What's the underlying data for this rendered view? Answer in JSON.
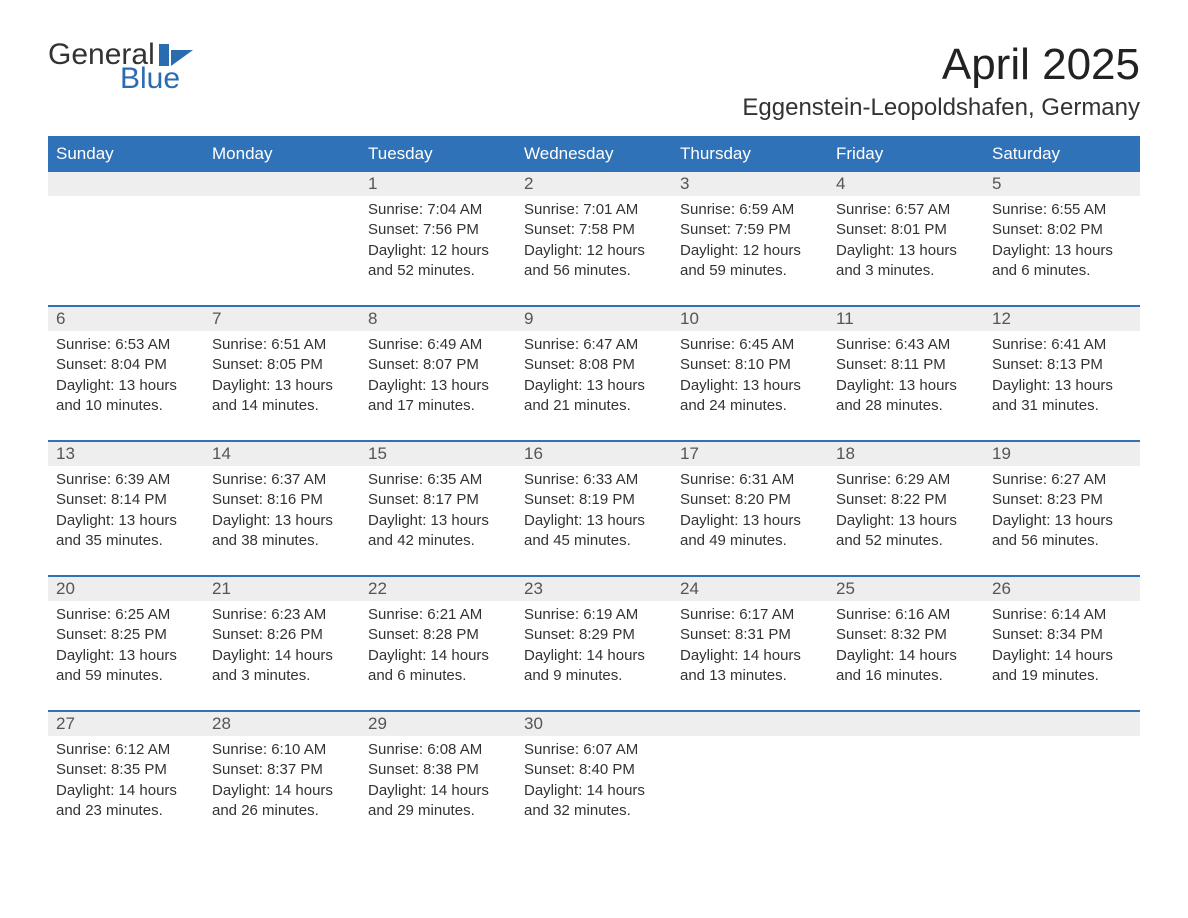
{
  "logo": {
    "word1": "General",
    "word2": "Blue"
  },
  "title": {
    "month": "April 2025",
    "location": "Eggenstein-Leopoldshafen, Germany"
  },
  "colors": {
    "header_bg": "#2f72b8",
    "header_text": "#ffffff",
    "daynum_bg": "#eeeeee",
    "rule": "#2f72b8",
    "body_text": "#333333",
    "logo_blue": "#2b6cb0",
    "page_bg": "#ffffff"
  },
  "weekdays": [
    "Sunday",
    "Monday",
    "Tuesday",
    "Wednesday",
    "Thursday",
    "Friday",
    "Saturday"
  ],
  "weeks": [
    [
      null,
      null,
      {
        "n": "1",
        "sr": "Sunrise: 7:04 AM",
        "ss": "Sunset: 7:56 PM",
        "d1": "Daylight: 12 hours",
        "d2": "and 52 minutes."
      },
      {
        "n": "2",
        "sr": "Sunrise: 7:01 AM",
        "ss": "Sunset: 7:58 PM",
        "d1": "Daylight: 12 hours",
        "d2": "and 56 minutes."
      },
      {
        "n": "3",
        "sr": "Sunrise: 6:59 AM",
        "ss": "Sunset: 7:59 PM",
        "d1": "Daylight: 12 hours",
        "d2": "and 59 minutes."
      },
      {
        "n": "4",
        "sr": "Sunrise: 6:57 AM",
        "ss": "Sunset: 8:01 PM",
        "d1": "Daylight: 13 hours",
        "d2": "and 3 minutes."
      },
      {
        "n": "5",
        "sr": "Sunrise: 6:55 AM",
        "ss": "Sunset: 8:02 PM",
        "d1": "Daylight: 13 hours",
        "d2": "and 6 minutes."
      }
    ],
    [
      {
        "n": "6",
        "sr": "Sunrise: 6:53 AM",
        "ss": "Sunset: 8:04 PM",
        "d1": "Daylight: 13 hours",
        "d2": "and 10 minutes."
      },
      {
        "n": "7",
        "sr": "Sunrise: 6:51 AM",
        "ss": "Sunset: 8:05 PM",
        "d1": "Daylight: 13 hours",
        "d2": "and 14 minutes."
      },
      {
        "n": "8",
        "sr": "Sunrise: 6:49 AM",
        "ss": "Sunset: 8:07 PM",
        "d1": "Daylight: 13 hours",
        "d2": "and 17 minutes."
      },
      {
        "n": "9",
        "sr": "Sunrise: 6:47 AM",
        "ss": "Sunset: 8:08 PM",
        "d1": "Daylight: 13 hours",
        "d2": "and 21 minutes."
      },
      {
        "n": "10",
        "sr": "Sunrise: 6:45 AM",
        "ss": "Sunset: 8:10 PM",
        "d1": "Daylight: 13 hours",
        "d2": "and 24 minutes."
      },
      {
        "n": "11",
        "sr": "Sunrise: 6:43 AM",
        "ss": "Sunset: 8:11 PM",
        "d1": "Daylight: 13 hours",
        "d2": "and 28 minutes."
      },
      {
        "n": "12",
        "sr": "Sunrise: 6:41 AM",
        "ss": "Sunset: 8:13 PM",
        "d1": "Daylight: 13 hours",
        "d2": "and 31 minutes."
      }
    ],
    [
      {
        "n": "13",
        "sr": "Sunrise: 6:39 AM",
        "ss": "Sunset: 8:14 PM",
        "d1": "Daylight: 13 hours",
        "d2": "and 35 minutes."
      },
      {
        "n": "14",
        "sr": "Sunrise: 6:37 AM",
        "ss": "Sunset: 8:16 PM",
        "d1": "Daylight: 13 hours",
        "d2": "and 38 minutes."
      },
      {
        "n": "15",
        "sr": "Sunrise: 6:35 AM",
        "ss": "Sunset: 8:17 PM",
        "d1": "Daylight: 13 hours",
        "d2": "and 42 minutes."
      },
      {
        "n": "16",
        "sr": "Sunrise: 6:33 AM",
        "ss": "Sunset: 8:19 PM",
        "d1": "Daylight: 13 hours",
        "d2": "and 45 minutes."
      },
      {
        "n": "17",
        "sr": "Sunrise: 6:31 AM",
        "ss": "Sunset: 8:20 PM",
        "d1": "Daylight: 13 hours",
        "d2": "and 49 minutes."
      },
      {
        "n": "18",
        "sr": "Sunrise: 6:29 AM",
        "ss": "Sunset: 8:22 PM",
        "d1": "Daylight: 13 hours",
        "d2": "and 52 minutes."
      },
      {
        "n": "19",
        "sr": "Sunrise: 6:27 AM",
        "ss": "Sunset: 8:23 PM",
        "d1": "Daylight: 13 hours",
        "d2": "and 56 minutes."
      }
    ],
    [
      {
        "n": "20",
        "sr": "Sunrise: 6:25 AM",
        "ss": "Sunset: 8:25 PM",
        "d1": "Daylight: 13 hours",
        "d2": "and 59 minutes."
      },
      {
        "n": "21",
        "sr": "Sunrise: 6:23 AM",
        "ss": "Sunset: 8:26 PM",
        "d1": "Daylight: 14 hours",
        "d2": "and 3 minutes."
      },
      {
        "n": "22",
        "sr": "Sunrise: 6:21 AM",
        "ss": "Sunset: 8:28 PM",
        "d1": "Daylight: 14 hours",
        "d2": "and 6 minutes."
      },
      {
        "n": "23",
        "sr": "Sunrise: 6:19 AM",
        "ss": "Sunset: 8:29 PM",
        "d1": "Daylight: 14 hours",
        "d2": "and 9 minutes."
      },
      {
        "n": "24",
        "sr": "Sunrise: 6:17 AM",
        "ss": "Sunset: 8:31 PM",
        "d1": "Daylight: 14 hours",
        "d2": "and 13 minutes."
      },
      {
        "n": "25",
        "sr": "Sunrise: 6:16 AM",
        "ss": "Sunset: 8:32 PM",
        "d1": "Daylight: 14 hours",
        "d2": "and 16 minutes."
      },
      {
        "n": "26",
        "sr": "Sunrise: 6:14 AM",
        "ss": "Sunset: 8:34 PM",
        "d1": "Daylight: 14 hours",
        "d2": "and 19 minutes."
      }
    ],
    [
      {
        "n": "27",
        "sr": "Sunrise: 6:12 AM",
        "ss": "Sunset: 8:35 PM",
        "d1": "Daylight: 14 hours",
        "d2": "and 23 minutes."
      },
      {
        "n": "28",
        "sr": "Sunrise: 6:10 AM",
        "ss": "Sunset: 8:37 PM",
        "d1": "Daylight: 14 hours",
        "d2": "and 26 minutes."
      },
      {
        "n": "29",
        "sr": "Sunrise: 6:08 AM",
        "ss": "Sunset: 8:38 PM",
        "d1": "Daylight: 14 hours",
        "d2": "and 29 minutes."
      },
      {
        "n": "30",
        "sr": "Sunrise: 6:07 AM",
        "ss": "Sunset: 8:40 PM",
        "d1": "Daylight: 14 hours",
        "d2": "and 32 minutes."
      },
      null,
      null,
      null
    ]
  ]
}
